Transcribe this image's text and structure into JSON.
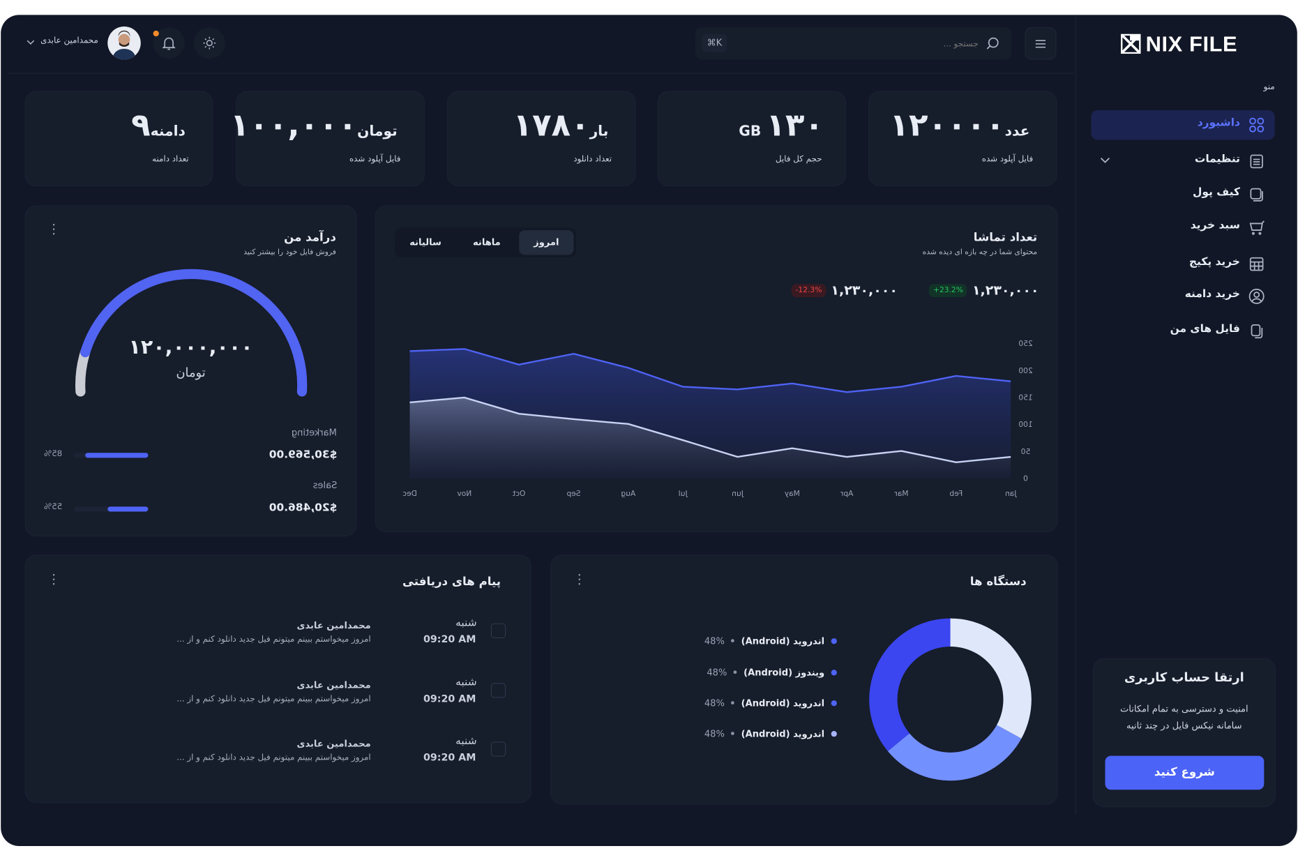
{
  "app": {
    "logo": "NIX FILE"
  },
  "header": {
    "search_placeholder": "جستجو ...",
    "shortcut": "⌘K",
    "user_name": "محمدامین عابدی",
    "notification_dot_color": "#f28b2c"
  },
  "sidebar": {
    "menu_label": "منو",
    "items": [
      {
        "label": "داشبورد",
        "icon": "grid-icon",
        "active": true
      },
      {
        "label": "تنظیمات",
        "icon": "document-icon",
        "has_submenu": true
      },
      {
        "label": "کیف پول",
        "icon": "wallet-icon"
      },
      {
        "label": "سبد خرید",
        "icon": "cart-icon"
      },
      {
        "label": "خرید پکیج",
        "icon": "table-icon"
      },
      {
        "label": "خرید دامنه",
        "icon": "user-circle-icon"
      },
      {
        "label": "فایل های من",
        "icon": "files-icon"
      }
    ],
    "upgrade": {
      "title": "ارتقا حساب کاربری",
      "line1": "امنیت و دسترسی به تمام امکانات",
      "line2": "سامانه نیکس فایل در چند ثانیه",
      "button": "شروع کنید"
    }
  },
  "stats": [
    {
      "value": "۱۲۰۰۰۰",
      "unit": "عدد",
      "label": "فایل آپلود شده"
    },
    {
      "value": "۱۳۰",
      "unit": "GB",
      "label": "حجم کل فایل"
    },
    {
      "value": "۱۷۸۰",
      "unit": "بار",
      "label": "تعداد دانلود"
    },
    {
      "value": "۱۰۰,۰۰۰",
      "unit": "تومان",
      "label": "فایل آپلود شده"
    },
    {
      "value": "۹",
      "unit": "دامنه",
      "label": "تعداد دامنه"
    }
  ],
  "income": {
    "title": "درآمد من",
    "subtitle": "فروش فایل خود را بیشتر کنید",
    "amount": "۱۲۰,۰۰۰,۰۰۰",
    "currency": "تومان",
    "gauge_percent": 89,
    "rows": [
      {
        "label": "Marketing",
        "value": "$30,569.00",
        "percent_label": "85%",
        "percent": 85
      },
      {
        "label": "Sales",
        "value": "$20,486.00",
        "percent_label": "55%",
        "percent": 55
      }
    ]
  },
  "views": {
    "title": "تعداد تماشا",
    "subtitle": "محتوای شما در چه بازه ای دیده شده",
    "tabs": [
      {
        "label": "امروز",
        "active": true
      },
      {
        "label": "ماهانه"
      },
      {
        "label": "سالیانه"
      }
    ],
    "metrics": [
      {
        "value": "۱,۲۳۰,۰۰۰",
        "change": "+23.2%",
        "color": "#22c55e"
      },
      {
        "value": "۱,۲۳۰,۰۰۰",
        "change": "-12.3%",
        "color": "#ef4444"
      }
    ]
  },
  "chart_data": {
    "type": "area",
    "categories": [
      "Jan",
      "Feb",
      "Mar",
      "Apr",
      "May",
      "Jun",
      "Jul",
      "Aug",
      "Sep",
      "Oct",
      "Nov",
      "Dec"
    ],
    "yticks": [
      "0",
      "50",
      "100",
      "150",
      "200",
      "250"
    ],
    "ylim": [
      0,
      250
    ],
    "x_direction": "right-to-left",
    "series": [
      {
        "values": [
          180,
          190,
          170,
          160,
          176,
          165,
          170,
          205,
          231,
          211,
          240,
          236
        ],
        "color": "#4f63f5"
      },
      {
        "values": [
          40,
          30,
          51,
          40,
          56,
          40,
          71,
          101,
          110,
          120,
          150,
          141
        ],
        "color": "#c8d2f2"
      }
    ]
  },
  "messages": {
    "title": "پیام های دریافتی",
    "items": [
      {
        "day": "شنبه",
        "time": "09:20 AM",
        "name": "محمدامین عابدی",
        "text": "امروز میخواستم ببینم میتونم فیل جدید دانلود کنم و از ..."
      },
      {
        "day": "شنبه",
        "time": "09:20 AM",
        "name": "محمدامین عابدی",
        "text": "امروز میخواستم ببینم میتونم فیل جدید دانلود کنم و از ..."
      },
      {
        "day": "شنبه",
        "time": "09:20 AM",
        "name": "محمدامین عابدی",
        "text": "امروز میخواستم ببینم میتونم فیل جدید دانلود کنم و از ..."
      }
    ]
  },
  "devices": {
    "title": "دستگاه ها",
    "legend": [
      {
        "name": "اندروید (Android)",
        "percent": "48%",
        "color": "#4f63f5"
      },
      {
        "name": "ویندوز (Android)",
        "percent": "48%",
        "color": "#4f63f5"
      },
      {
        "name": "اندروید (Android)",
        "percent": "48%",
        "color": "#4f63f5"
      },
      {
        "name": "اندروید (Android)",
        "percent": "48%",
        "color": "#a7b4ff"
      }
    ],
    "donut": [
      {
        "value": 33,
        "color": "#dfe8fb"
      },
      {
        "value": 31,
        "color": "#7390ff"
      },
      {
        "value": 36,
        "color": "#3b46f0"
      }
    ]
  }
}
